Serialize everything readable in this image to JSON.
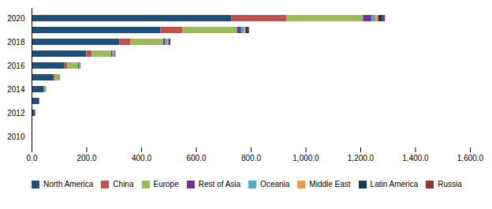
{
  "chart_data": {
    "type": "bar",
    "orientation": "horizontal",
    "stacked": true,
    "categories": [
      "2010",
      null,
      "2012",
      null,
      "2014",
      null,
      "2016",
      null,
      "2018",
      null,
      "2020"
    ],
    "series": [
      {
        "name": "North America",
        "color": "#1f4e79",
        "values": [
          0.5,
          2,
          13,
          28,
          45,
          80,
          120,
          200,
          320,
          470,
          730
        ]
      },
      {
        "name": "China",
        "color": "#c0504d",
        "values": [
          0,
          0,
          0,
          0,
          3,
          5,
          10,
          20,
          40,
          80,
          200
        ]
      },
      {
        "name": "Europe",
        "color": "#9bbb59",
        "values": [
          0,
          0,
          0,
          1,
          5,
          15,
          40,
          70,
          120,
          200,
          280
        ]
      },
      {
        "name": "Rest of Asia",
        "color": "#7030a0",
        "values": [
          0,
          0,
          0,
          0,
          0,
          1,
          3,
          5,
          8,
          15,
          30
        ]
      },
      {
        "name": "Oceania",
        "color": "#4bacc6",
        "values": [
          0,
          0,
          0,
          0,
          1,
          2,
          3,
          5,
          8,
          10,
          15
        ]
      },
      {
        "name": "Middle East",
        "color": "#f79646",
        "values": [
          0,
          0,
          0,
          0,
          0,
          0,
          1,
          2,
          4,
          6,
          10
        ]
      },
      {
        "name": "Latin America",
        "color": "#17375e",
        "values": [
          0,
          0,
          0,
          0,
          0,
          1,
          1,
          2,
          4,
          8,
          15
        ]
      },
      {
        "name": "Russia",
        "color": "#943634",
        "values": [
          0,
          0,
          0,
          0,
          0,
          0,
          1,
          2,
          3,
          5,
          10
        ]
      }
    ],
    "xlim": [
      0,
      1600
    ],
    "xticks": [
      {
        "value": 0,
        "label": "0.0"
      },
      {
        "value": 200,
        "label": "200.0"
      },
      {
        "value": 400,
        "label": "400.0"
      },
      {
        "value": 600,
        "label": "600.0"
      },
      {
        "value": 800,
        "label": "800.0"
      },
      {
        "value": 1000,
        "label": "1,000.0"
      },
      {
        "value": 1200,
        "label": "1,200.0"
      },
      {
        "value": 1400,
        "label": "1,400.0"
      },
      {
        "value": 1600,
        "label": "1,600.0"
      }
    ],
    "grid": false,
    "legend": "bottom"
  }
}
